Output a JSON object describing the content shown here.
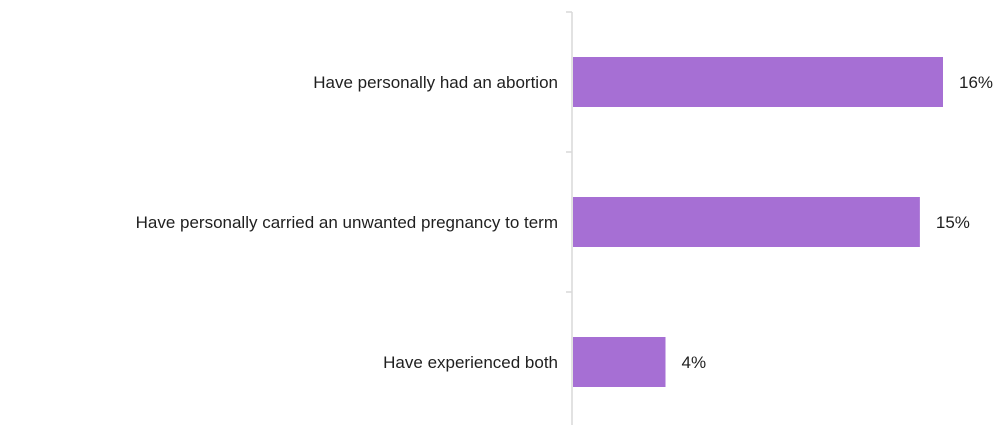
{
  "chart_data": {
    "type": "bar",
    "orientation": "horizontal",
    "categories": [
      "Have personally had an abortion",
      "Have personally carried an unwanted pregnancy to term",
      "Have experienced both"
    ],
    "values": [
      16,
      15,
      4
    ],
    "value_labels": [
      "16%",
      "15%",
      "4%"
    ],
    "unit": "%",
    "xlim": [
      0,
      18
    ],
    "grid": false,
    "legend": "none",
    "bar_color": "#a66fd4",
    "axis_color": "#d9d9d9"
  }
}
